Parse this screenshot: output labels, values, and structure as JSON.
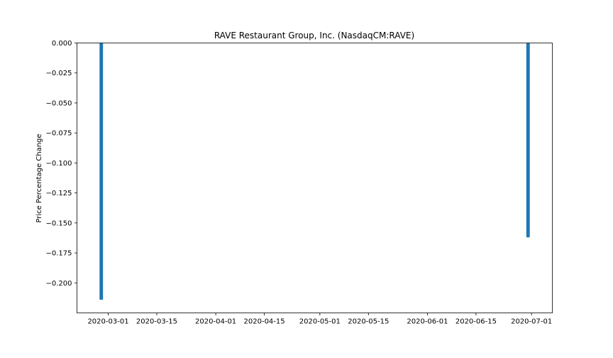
{
  "chart_data": {
    "type": "bar",
    "title": "RAVE Restaurant Group, Inc. (NasdaqCM:RAVE)",
    "xlabel": "",
    "ylabel": "Price Percentage Change",
    "x": [
      "2020-02-28",
      "2020-06-30"
    ],
    "values": [
      -0.214,
      -0.162
    ],
    "xlim": [
      "2020-02-21",
      "2020-07-07"
    ],
    "ylim": [
      -0.225,
      0.0
    ],
    "x_ticks": [
      "2020-03-01",
      "2020-03-15",
      "2020-04-01",
      "2020-04-15",
      "2020-05-01",
      "2020-05-15",
      "2020-06-01",
      "2020-06-15",
      "2020-07-01"
    ],
    "y_ticks": [
      "0.000",
      "−0.025",
      "−0.050",
      "−0.075",
      "−0.100",
      "−0.125",
      "−0.150",
      "−0.175",
      "−0.200"
    ],
    "bar_color": "#1f77b4",
    "grid": false,
    "legend": "none"
  }
}
